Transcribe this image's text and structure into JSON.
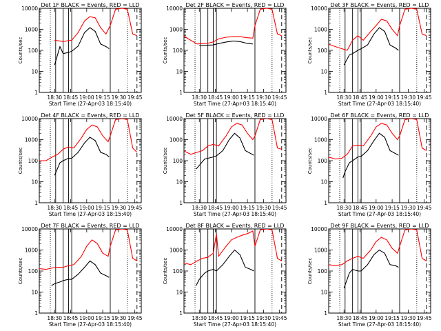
{
  "figure": {
    "x_axis_label": "Start Time (27-Apr-03 18:15:40)",
    "y_axis_label": "Counts/sec",
    "series_colors": {
      "events": "#000000",
      "lld": "#ff0000"
    }
  },
  "chart_data": [
    {
      "type": "line",
      "title": "Det 1F BLACK = Events, RED = LLD",
      "xlabel": "Start Time (27-Apr-03 18:15:40)",
      "ylabel": "Counts/sec",
      "ylim": [
        1,
        10000
      ],
      "yscale": "log",
      "y_ticks": [
        "1",
        "10",
        "100",
        "1000",
        "10000"
      ],
      "x_tick_labels": [
        "18:30",
        "18:45",
        "19:00",
        "19:15",
        "19:30",
        "19:45"
      ],
      "solid_vlines": [
        "18:31",
        "18:38",
        "18:43",
        "18:46",
        "19:22"
      ],
      "dotted_vlines": [
        "18:26",
        "19:38"
      ],
      "dashed_vlines": [
        "19:47"
      ],
      "series": [
        {
          "color": "#000000",
          "x": [
            "18:30",
            "18:35",
            "18:38",
            "18:43",
            "18:46",
            "18:52",
            "18:58",
            "19:03",
            "19:08",
            "19:13",
            "19:18",
            "19:21"
          ],
          "values": [
            20,
            150,
            70,
            80,
            90,
            160,
            700,
            1200,
            800,
            200,
            150,
            120
          ]
        },
        {
          "color": "#ff0000",
          "x": [
            "18:30",
            "18:35",
            "18:38",
            "18:43",
            "18:46",
            "18:52",
            "18:58",
            "19:03",
            "19:08",
            "19:13",
            "19:18",
            "19:22",
            "19:27",
            "19:33",
            "19:38",
            "19:43",
            "19:47"
          ],
          "values": [
            300,
            280,
            260,
            290,
            300,
            700,
            2500,
            4000,
            3500,
            1200,
            600,
            1500,
            9000,
            10000,
            9000,
            600,
            500
          ]
        }
      ]
    },
    {
      "type": "line",
      "title": "Det 2F BLACK = Events, RED = LLD",
      "xlabel": "Start Time (27-Apr-03 18:15:40)",
      "ylabel": "Counts/sec",
      "ylim": [
        1,
        10000
      ],
      "yscale": "log",
      "y_ticks": [
        "1",
        "10",
        "100",
        "1000",
        "10000"
      ],
      "x_tick_labels": [
        "18:30",
        "18:45",
        "19:00",
        "19:15",
        "19:30",
        "19:45"
      ],
      "solid_vlines": [
        "18:31",
        "18:38",
        "18:43",
        "18:46",
        "19:22"
      ],
      "dotted_vlines": [
        "18:26",
        "19:38"
      ],
      "dashed_vlines": [
        "19:47"
      ],
      "series": [
        {
          "color": "#000000",
          "x": [
            "18:30",
            "18:37",
            "18:43",
            "18:48",
            "18:55",
            "19:02",
            "19:08",
            "19:14",
            "19:20"
          ],
          "values": [
            170,
            175,
            180,
            210,
            250,
            280,
            260,
            220,
            200
          ]
        },
        {
          "color": "#ff0000",
          "x": [
            "18:15",
            "18:22",
            "18:28",
            "18:33",
            "18:38",
            "18:43",
            "18:48",
            "18:55",
            "19:02",
            "19:08",
            "19:14",
            "19:20",
            "19:22",
            "19:27",
            "19:33",
            "19:38",
            "19:43",
            "19:47"
          ],
          "values": [
            500,
            300,
            200,
            210,
            220,
            250,
            350,
            420,
            450,
            450,
            400,
            380,
            1500,
            9000,
            10000,
            9000,
            600,
            500
          ]
        }
      ]
    },
    {
      "type": "line",
      "title": "Det 3F BLACK = Events, RED = LLD",
      "xlabel": "Start Time (27-Apr-03 18:15:40)",
      "ylabel": "Counts/sec",
      "ylim": [
        1,
        10000
      ],
      "yscale": "log",
      "y_ticks": [
        "1",
        "10",
        "100",
        "1000",
        "10000"
      ],
      "x_tick_labels": [
        "18:30",
        "18:45",
        "19:00",
        "19:15",
        "19:30",
        "19:45"
      ],
      "solid_vlines": [
        "18:31",
        "18:38",
        "18:43",
        "18:46",
        "19:22"
      ],
      "dotted_vlines": [
        "18:26",
        "19:38"
      ],
      "dashed_vlines": [
        "19:47"
      ],
      "series": [
        {
          "color": "#000000",
          "x": [
            "18:30",
            "18:35",
            "18:38",
            "18:43",
            "18:46",
            "18:52",
            "18:58",
            "19:03",
            "19:08",
            "19:13",
            "19:18",
            "19:21"
          ],
          "values": [
            20,
            60,
            70,
            100,
            120,
            180,
            600,
            1200,
            800,
            180,
            130,
            100
          ]
        },
        {
          "color": "#ff0000",
          "x": [
            "18:15",
            "18:22",
            "18:28",
            "18:33",
            "18:38",
            "18:43",
            "18:48",
            "18:55",
            "19:00",
            "19:05",
            "19:10",
            "19:15",
            "19:20",
            "19:22",
            "19:27",
            "19:33",
            "19:38",
            "19:43",
            "19:47"
          ],
          "values": [
            200,
            150,
            120,
            100,
            300,
            500,
            300,
            800,
            1500,
            3000,
            2500,
            1000,
            500,
            1500,
            9000,
            10000,
            9000,
            600,
            500
          ]
        }
      ]
    },
    {
      "type": "line",
      "title": "Det 4F BLACK = Events, RED = LLD",
      "xlabel": "Start Time (27-Apr-03 18:15:40)",
      "ylabel": "Counts/sec",
      "ylim": [
        1,
        10000
      ],
      "yscale": "log",
      "y_ticks": [
        "1",
        "10",
        "100",
        "1000",
        "10000"
      ],
      "x_tick_labels": [
        "18:30",
        "18:45",
        "19:00",
        "19:15",
        "19:30",
        "19:45"
      ],
      "solid_vlines": [
        "18:31",
        "18:38",
        "18:43",
        "18:46",
        "19:22"
      ],
      "dotted_vlines": [
        "18:26",
        "19:38"
      ],
      "dashed_vlines": [
        "19:47"
      ],
      "series": [
        {
          "color": "#000000",
          "x": [
            "18:30",
            "18:35",
            "18:38",
            "18:43",
            "18:46",
            "18:52",
            "18:58",
            "19:03",
            "19:08",
            "19:13",
            "19:18",
            "19:21"
          ],
          "values": [
            20,
            80,
            100,
            130,
            130,
            250,
            700,
            1300,
            900,
            250,
            200,
            150
          ]
        },
        {
          "color": "#ff0000",
          "x": [
            "18:15",
            "18:22",
            "18:28",
            "18:33",
            "18:38",
            "18:43",
            "18:48",
            "18:55",
            "19:00",
            "19:05",
            "19:10",
            "19:15",
            "19:20",
            "19:22",
            "19:27",
            "19:33",
            "19:38",
            "19:43",
            "19:47"
          ],
          "values": [
            100,
            100,
            150,
            200,
            350,
            450,
            400,
            1200,
            3000,
            5000,
            4000,
            1500,
            800,
            1500,
            9000,
            10000,
            9000,
            400,
            250
          ]
        }
      ]
    },
    {
      "type": "line",
      "title": "Det 5F BLACK = Events, RED = LLD",
      "xlabel": "Start Time (27-Apr-03 18:15:40)",
      "ylabel": "Counts/sec",
      "ylim": [
        1,
        10000
      ],
      "yscale": "log",
      "y_ticks": [
        "1",
        "10",
        "100",
        "1000",
        "10000"
      ],
      "x_tick_labels": [
        "18:30",
        "18:45",
        "19:00",
        "19:15",
        "19:30",
        "19:45"
      ],
      "solid_vlines": [
        "18:31",
        "18:38",
        "18:43",
        "18:46",
        "19:22"
      ],
      "dotted_vlines": [
        "18:26",
        "19:38"
      ],
      "dashed_vlines": [
        "19:47"
      ],
      "series": [
        {
          "color": "#000000",
          "x": [
            "18:27",
            "18:30",
            "18:35",
            "18:38",
            "18:43",
            "18:46",
            "18:52",
            "18:58",
            "19:03",
            "19:08",
            "19:13",
            "19:18",
            "19:21"
          ],
          "values": [
            40,
            60,
            120,
            130,
            150,
            170,
            300,
            1000,
            2000,
            1200,
            300,
            220,
            180
          ]
        },
        {
          "color": "#ff0000",
          "x": [
            "18:15",
            "18:22",
            "18:28",
            "18:33",
            "18:38",
            "18:43",
            "18:48",
            "18:55",
            "19:00",
            "19:05",
            "19:10",
            "19:15",
            "19:20",
            "19:22",
            "19:27",
            "19:33",
            "19:38",
            "19:43",
            "19:47"
          ],
          "values": [
            300,
            200,
            250,
            300,
            500,
            600,
            500,
            1500,
            4000,
            6000,
            5000,
            2000,
            1000,
            1500,
            9000,
            10000,
            9000,
            400,
            350
          ]
        }
      ]
    },
    {
      "type": "line",
      "title": "Det 6F BLACK = Events, RED = LLD",
      "xlabel": "Start Time (27-Apr-03 18:15:40)",
      "ylabel": "Counts/sec",
      "ylim": [
        1,
        10000
      ],
      "yscale": "log",
      "y_ticks": [
        "1",
        "10",
        "100",
        "1000",
        "10000"
      ],
      "x_tick_labels": [
        "18:30",
        "18:45",
        "19:00",
        "19:15",
        "19:30",
        "19:45"
      ],
      "solid_vlines": [
        "18:31",
        "18:38",
        "18:43",
        "18:46",
        "19:22"
      ],
      "dotted_vlines": [
        "18:26",
        "19:38"
      ],
      "dashed_vlines": [
        "19:47"
      ],
      "series": [
        {
          "color": "#000000",
          "x": [
            "18:29",
            "18:31",
            "18:35",
            "18:38",
            "18:43",
            "18:46",
            "18:52",
            "18:58",
            "19:03",
            "19:08",
            "19:13",
            "19:18",
            "19:21"
          ],
          "values": [
            15,
            30,
            80,
            100,
            150,
            160,
            300,
            900,
            2000,
            1300,
            300,
            220,
            180
          ]
        },
        {
          "color": "#ff0000",
          "x": [
            "18:15",
            "18:22",
            "18:28",
            "18:33",
            "18:38",
            "18:43",
            "18:48",
            "18:55",
            "19:00",
            "19:05",
            "19:10",
            "19:15",
            "19:20",
            "19:22",
            "19:27",
            "19:33",
            "19:38",
            "19:43",
            "19:47"
          ],
          "values": [
            150,
            120,
            130,
            200,
            500,
            550,
            500,
            1500,
            4000,
            6000,
            5000,
            2000,
            1000,
            1500,
            9000,
            10000,
            9000,
            400,
            300
          ]
        }
      ]
    },
    {
      "type": "line",
      "title": "Det 7F BLACK = Events, RED = LLD",
      "xlabel": "Start Time (27-Apr-03 18:15:40)",
      "ylabel": "Counts/sec",
      "ylim": [
        1,
        10000
      ],
      "yscale": "log",
      "y_ticks": [
        "1",
        "10",
        "100",
        "1000",
        "10000"
      ],
      "x_tick_labels": [
        "18:30",
        "18:45",
        "19:00",
        "19:15",
        "19:30",
        "19:45"
      ],
      "solid_vlines": [
        "18:31",
        "18:38",
        "18:43",
        "18:46",
        "19:22"
      ],
      "dotted_vlines": [
        "18:26",
        "19:38"
      ],
      "dashed_vlines": [
        "19:47"
      ],
      "series": [
        {
          "color": "#000000",
          "x": [
            "18:27",
            "18:30",
            "18:35",
            "18:38",
            "18:43",
            "18:46",
            "18:52",
            "18:58",
            "19:03",
            "19:08",
            "19:13",
            "19:18",
            "19:21"
          ],
          "values": [
            20,
            25,
            30,
            35,
            40,
            40,
            70,
            150,
            300,
            200,
            80,
            60,
            50
          ]
        },
        {
          "color": "#ff0000",
          "x": [
            "18:15",
            "18:22",
            "18:28",
            "18:33",
            "18:38",
            "18:43",
            "18:48",
            "18:55",
            "19:00",
            "19:05",
            "19:10",
            "19:15",
            "19:20",
            "19:22",
            "19:27",
            "19:33",
            "19:38",
            "19:43",
            "19:47"
          ],
          "values": [
            130,
            120,
            140,
            150,
            150,
            180,
            200,
            500,
            1500,
            3000,
            2000,
            700,
            500,
            1500,
            9000,
            10000,
            9000,
            400,
            300
          ]
        }
      ]
    },
    {
      "type": "line",
      "title": "Det 8F BLACK = Events, RED = LLD",
      "xlabel": "Start Time (27-Apr-03 18:15:40)",
      "ylabel": "Counts/sec",
      "ylim": [
        1,
        10000
      ],
      "yscale": "log",
      "y_ticks": [
        "1",
        "10",
        "100",
        "1000",
        "10000"
      ],
      "x_tick_labels": [
        "18:30",
        "18:45",
        "19:00",
        "19:15",
        "19:30",
        "19:45"
      ],
      "solid_vlines": [
        "18:31",
        "18:38",
        "18:43",
        "18:46",
        "19:22"
      ],
      "dotted_vlines": [
        "18:26",
        "19:38"
      ],
      "dashed_vlines": [
        "19:47"
      ],
      "series": [
        {
          "color": "#000000",
          "x": [
            "18:27",
            "18:30",
            "18:35",
            "18:38",
            "18:43",
            "18:46",
            "18:52",
            "18:58",
            "19:03",
            "19:08",
            "19:13",
            "19:18",
            "19:21"
          ],
          "values": [
            20,
            40,
            80,
            100,
            120,
            100,
            200,
            500,
            1000,
            600,
            150,
            120,
            100
          ]
        },
        {
          "color": "#ff0000",
          "x": [
            "18:15",
            "18:22",
            "18:28",
            "18:33",
            "18:38",
            "18:43",
            "18:46",
            "18:48",
            "18:55",
            "19:00",
            "19:05",
            "19:10",
            "19:15",
            "19:20",
            "19:22",
            "19:27",
            "19:33",
            "19:38",
            "19:43",
            "19:47"
          ],
          "values": [
            250,
            200,
            300,
            400,
            450,
            700,
            6000,
            500,
            1500,
            3000,
            4000,
            5000,
            6000,
            8000,
            1500,
            9000,
            10000,
            9000,
            400,
            300
          ]
        }
      ]
    },
    {
      "type": "line",
      "title": "Det 9F BLACK = Events, RED = LLD",
      "xlabel": "Start Time (27-Apr-03 18:15:40)",
      "ylabel": "Counts/sec",
      "ylim": [
        1,
        10000
      ],
      "yscale": "log",
      "y_ticks": [
        "1",
        "10",
        "100",
        "1000",
        "10000"
      ],
      "x_tick_labels": [
        "18:30",
        "18:45",
        "19:00",
        "19:15",
        "19:30",
        "19:45"
      ],
      "solid_vlines": [
        "18:31",
        "18:38",
        "18:43",
        "18:46",
        "19:22"
      ],
      "dotted_vlines": [
        "18:26",
        "19:38"
      ],
      "dashed_vlines": [
        "19:47"
      ],
      "series": [
        {
          "color": "#000000",
          "x": [
            "18:30",
            "18:35",
            "18:38",
            "18:43",
            "18:46",
            "18:52",
            "18:58",
            "19:03",
            "19:08",
            "19:13",
            "19:18",
            "19:21"
          ],
          "values": [
            15,
            80,
            120,
            100,
            100,
            200,
            600,
            1000,
            700,
            200,
            180,
            150
          ]
        },
        {
          "color": "#ff0000",
          "x": [
            "18:15",
            "18:22",
            "18:28",
            "18:33",
            "18:38",
            "18:43",
            "18:48",
            "18:55",
            "19:00",
            "19:05",
            "19:10",
            "19:15",
            "19:20",
            "19:22",
            "19:27",
            "19:33",
            "19:38",
            "19:43",
            "19:47"
          ],
          "values": [
            200,
            180,
            200,
            300,
            400,
            500,
            400,
            1000,
            2500,
            4000,
            3000,
            1200,
            700,
            1500,
            9000,
            10000,
            9000,
            400,
            300
          ]
        }
      ]
    }
  ]
}
